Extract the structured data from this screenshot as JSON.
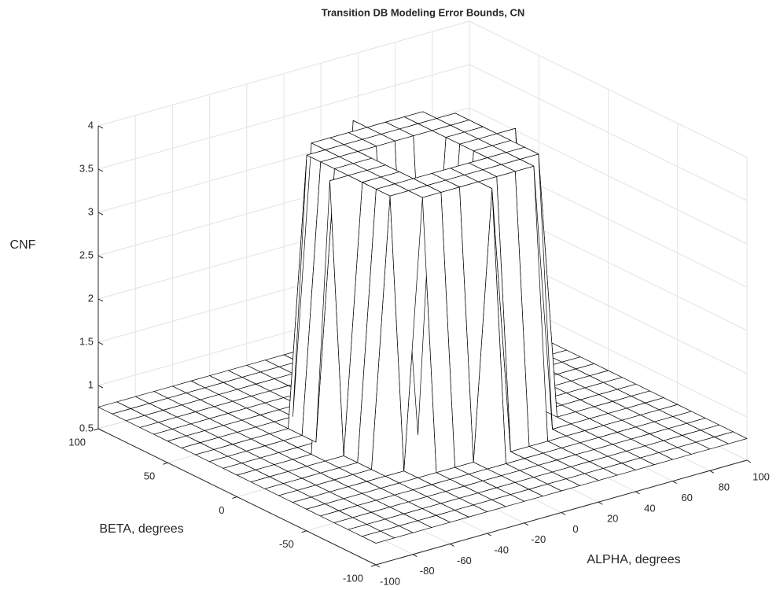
{
  "chart_data": {
    "type": "surface",
    "title": "Transition DB Modeling Error Bounds, CN",
    "xlabel": "ALPHA, degrees",
    "ylabel": "BETA, degrees",
    "zlabel": "CNF",
    "x": [
      -100,
      -90,
      -80,
      -70,
      -60,
      -50,
      -40,
      -30,
      -20,
      -10,
      0,
      10,
      20,
      30,
      40,
      50,
      60,
      70,
      80,
      90,
      100
    ],
    "y": [
      -100,
      -90,
      -80,
      -70,
      -60,
      -50,
      -40,
      -30,
      -20,
      -10,
      0,
      10,
      20,
      30,
      40,
      50,
      60,
      70,
      80,
      90,
      100
    ],
    "z": [
      [
        0.75,
        0.75,
        0.75,
        0.75,
        0.75,
        0.75,
        0.75,
        0.75,
        0.75,
        0.75,
        0.75,
        0.75,
        0.75,
        0.75,
        0.75,
        0.75,
        0.75,
        0.75,
        0.75,
        0.75,
        0.75
      ],
      [
        0.75,
        0.75,
        0.75,
        0.75,
        0.75,
        0.75,
        0.75,
        0.75,
        0.75,
        0.75,
        0.75,
        0.75,
        0.75,
        0.75,
        0.75,
        0.75,
        0.75,
        0.75,
        0.75,
        0.75,
        0.75
      ],
      [
        0.75,
        0.75,
        0.75,
        0.75,
        0.75,
        0.75,
        0.75,
        0.75,
        0.75,
        0.75,
        0.75,
        0.75,
        0.75,
        0.75,
        0.75,
        0.75,
        0.75,
        0.75,
        0.75,
        0.75,
        0.75
      ],
      [
        0.75,
        0.75,
        0.75,
        0.75,
        0.75,
        0.75,
        0.75,
        0.75,
        0.75,
        0.75,
        0.75,
        0.75,
        0.75,
        0.75,
        0.75,
        0.75,
        0.75,
        0.75,
        0.75,
        0.75,
        0.75
      ],
      [
        0.75,
        0.75,
        0.75,
        0.75,
        0.75,
        0.75,
        0.75,
        0.75,
        0.75,
        0.75,
        0.75,
        0.75,
        0.75,
        0.75,
        0.75,
        0.75,
        0.75,
        0.75,
        0.75,
        0.75,
        0.75
      ],
      [
        0.75,
        0.75,
        0.75,
        0.75,
        0.75,
        0.75,
        0.75,
        0.75,
        0.75,
        0.75,
        3.85,
        0.75,
        0.75,
        0.75,
        0.75,
        0.75,
        0.75,
        0.75,
        0.75,
        0.75,
        0.75
      ],
      [
        0.75,
        0.75,
        0.75,
        0.75,
        0.75,
        0.75,
        0.75,
        3.85,
        3.85,
        3.85,
        3.85,
        3.85,
        3.85,
        3.85,
        0.75,
        0.75,
        0.75,
        0.75,
        0.75,
        0.75,
        0.75
      ],
      [
        0.75,
        0.75,
        0.75,
        0.75,
        0.75,
        0.75,
        3.85,
        3.85,
        3.85,
        3.85,
        3.85,
        3.85,
        3.85,
        3.85,
        3.85,
        0.75,
        0.75,
        0.75,
        0.75,
        0.75,
        0.75
      ],
      [
        0.75,
        0.75,
        0.75,
        0.75,
        0.75,
        0.75,
        3.85,
        3.85,
        3.85,
        3.85,
        3.85,
        3.85,
        3.85,
        3.85,
        3.85,
        0.75,
        0.75,
        0.75,
        0.75,
        0.75,
        0.75
      ],
      [
        0.75,
        0.75,
        0.75,
        0.75,
        0.75,
        0.75,
        3.85,
        3.85,
        3.85,
        0.75,
        0.75,
        0.75,
        3.85,
        3.85,
        3.85,
        0.75,
        0.75,
        0.75,
        0.75,
        0.75,
        0.75
      ],
      [
        0.75,
        0.75,
        0.75,
        0.75,
        0.75,
        3.85,
        3.85,
        3.85,
        3.85,
        0.75,
        0.75,
        0.75,
        3.85,
        3.85,
        3.85,
        3.85,
        0.75,
        0.75,
        0.75,
        0.75,
        0.75
      ],
      [
        0.75,
        0.75,
        0.75,
        0.75,
        0.75,
        0.75,
        3.85,
        3.85,
        3.85,
        0.75,
        0.75,
        0.75,
        3.85,
        3.85,
        3.85,
        0.75,
        0.75,
        0.75,
        0.75,
        0.75,
        0.75
      ],
      [
        0.75,
        0.75,
        0.75,
        0.75,
        0.75,
        0.75,
        3.85,
        3.85,
        3.85,
        3.85,
        3.85,
        3.85,
        3.85,
        3.85,
        3.85,
        0.75,
        0.75,
        0.75,
        0.75,
        0.75,
        0.75
      ],
      [
        0.75,
        0.75,
        0.75,
        0.75,
        0.75,
        0.75,
        3.85,
        3.85,
        3.85,
        3.85,
        3.85,
        3.85,
        3.85,
        3.85,
        3.85,
        0.75,
        0.75,
        0.75,
        0.75,
        0.75,
        0.75
      ],
      [
        0.75,
        0.75,
        0.75,
        0.75,
        0.75,
        0.75,
        0.75,
        3.85,
        3.85,
        3.85,
        3.85,
        3.85,
        3.85,
        3.85,
        0.75,
        0.75,
        0.75,
        0.75,
        0.75,
        0.75,
        0.75
      ],
      [
        0.75,
        0.75,
        0.75,
        0.75,
        0.75,
        0.75,
        0.75,
        0.75,
        0.75,
        0.75,
        3.85,
        0.75,
        0.75,
        0.75,
        0.75,
        0.75,
        0.75,
        0.75,
        0.75,
        0.75,
        0.75
      ],
      [
        0.75,
        0.75,
        0.75,
        0.75,
        0.75,
        0.75,
        0.75,
        0.75,
        0.75,
        0.75,
        0.75,
        0.75,
        0.75,
        0.75,
        0.75,
        0.75,
        0.75,
        0.75,
        0.75,
        0.75,
        0.75
      ],
      [
        0.75,
        0.75,
        0.75,
        0.75,
        0.75,
        0.75,
        0.75,
        0.75,
        0.75,
        0.75,
        0.75,
        0.75,
        0.75,
        0.75,
        0.75,
        0.75,
        0.75,
        0.75,
        0.75,
        0.75,
        0.75
      ],
      [
        0.75,
        0.75,
        0.75,
        0.75,
        0.75,
        0.75,
        0.75,
        0.75,
        0.75,
        0.75,
        0.75,
        0.75,
        0.75,
        0.75,
        0.75,
        0.75,
        0.75,
        0.75,
        0.75,
        0.75,
        0.75
      ],
      [
        0.75,
        0.75,
        0.75,
        0.75,
        0.75,
        0.75,
        0.75,
        0.75,
        0.75,
        0.75,
        0.75,
        0.75,
        0.75,
        0.75,
        0.75,
        0.75,
        0.75,
        0.75,
        0.75,
        0.75,
        0.75
      ],
      [
        0.75,
        0.75,
        0.75,
        0.75,
        0.75,
        0.75,
        0.75,
        0.75,
        0.75,
        0.75,
        0.75,
        0.75,
        0.75,
        0.75,
        0.75,
        0.75,
        0.75,
        0.75,
        0.75,
        0.75,
        0.75
      ]
    ],
    "xlim": [
      -100,
      100
    ],
    "ylim": [
      -100,
      100
    ],
    "zlim": [
      0.5,
      4
    ],
    "xticks": [
      -100,
      -80,
      -60,
      -40,
      -20,
      0,
      20,
      40,
      60,
      80,
      100
    ],
    "yticks": [
      -100,
      -50,
      0,
      50,
      100
    ],
    "zticks": [
      0.5,
      1,
      1.5,
      2,
      2.5,
      3,
      3.5,
      4
    ],
    "grid": true,
    "color": "#ffffff",
    "edgecolor": "#000000"
  }
}
